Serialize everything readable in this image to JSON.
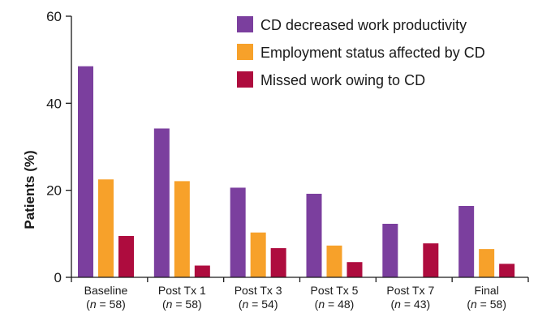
{
  "chart_data": {
    "type": "bar",
    "title": "",
    "xlabel": "",
    "ylabel": "Patients (%)",
    "ylim": [
      0,
      60
    ],
    "yticks": [
      "0",
      "20",
      "40",
      "60"
    ],
    "grid": false,
    "legend_position": "top-right",
    "categories": [
      {
        "label": "Baseline",
        "n_text": "= 58)"
      },
      {
        "label": "Post Tx 1",
        "n_text": "= 58)"
      },
      {
        "label": "Post Tx 3",
        "n_text": "= 54)"
      },
      {
        "label": "Post Tx 5",
        "n_text": "= 48)"
      },
      {
        "label": "Post Tx 7",
        "n_text": "= 43)"
      },
      {
        "label": "Final",
        "n_text": "= 58)"
      }
    ],
    "n_prefix": "(",
    "n_italic": "n",
    "series": [
      {
        "name": "CD decreased work productivity",
        "color": "#7b3f9e",
        "values": [
          48.5,
          34.2,
          20.6,
          19.2,
          12.3,
          16.4
        ]
      },
      {
        "name": "Employment status affected by CD",
        "color": "#f7a12a",
        "values": [
          22.5,
          22.1,
          10.3,
          7.3,
          0,
          6.5
        ]
      },
      {
        "name": "Missed work owing to CD",
        "color": "#ae0c3e",
        "values": [
          9.5,
          2.7,
          6.7,
          3.5,
          7.8,
          3.1
        ]
      }
    ]
  }
}
